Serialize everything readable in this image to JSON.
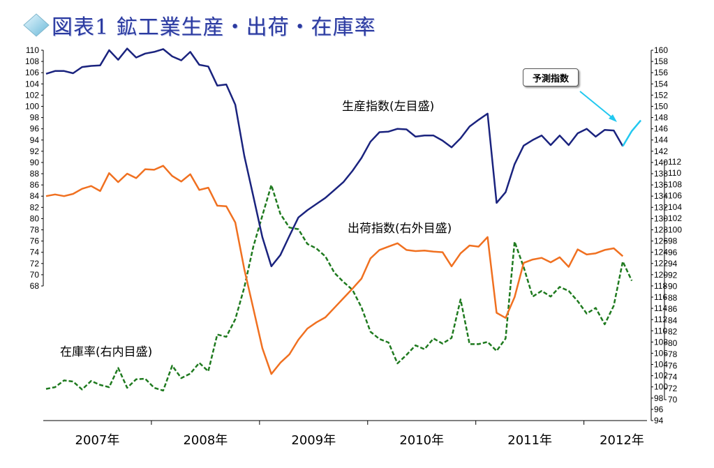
{
  "title": "図表1 鉱工業生産・出荷・在庫率",
  "colors": {
    "production": "#1a237e",
    "shipments": "#f07020",
    "inventory": "#1f7a1f",
    "forecast": "#22c8f0",
    "title": "#2b3aa0"
  },
  "annotations": {
    "production": "生産指数(左目盛)",
    "shipments": "出荷指数(右外目盛)",
    "inventory": "在庫率(右内目盛)",
    "forecast": "予測指数"
  },
  "chart_data": {
    "type": "line",
    "x_categories": [
      "2007年",
      "2008年",
      "2009年",
      "2010年",
      "2011年",
      "2012年"
    ],
    "axes": {
      "left": {
        "min": 68,
        "max": 110,
        "step": 2,
        "ticks": [
          68,
          70,
          72,
          74,
          76,
          78,
          80,
          82,
          84,
          86,
          88,
          90,
          92,
          94,
          96,
          98,
          100,
          102,
          104,
          106,
          108,
          110
        ]
      },
      "right_outer": {
        "min": 94,
        "max": 160,
        "step": 2,
        "ticks": [
          94,
          96,
          98,
          100,
          102,
          104,
          106,
          108,
          110,
          112,
          114,
          116,
          118,
          120,
          122,
          124,
          126,
          128,
          130,
          132,
          134,
          136,
          138,
          140,
          142,
          144,
          146,
          148,
          150,
          152,
          154,
          156,
          158,
          160
        ]
      },
      "right_inner": {
        "min": 70,
        "max": 112,
        "step": 2,
        "ticks": [
          70,
          72,
          74,
          76,
          78,
          80,
          82,
          84,
          86,
          88,
          90,
          92,
          94,
          96,
          98,
          100,
          102,
          104,
          106,
          108,
          110,
          112
        ]
      }
    },
    "series": [
      {
        "name": "生産指数(左目盛)",
        "axis": "left",
        "start": "2007-01",
        "values": [
          105.8,
          106.3,
          106.3,
          105.9,
          107.0,
          107.2,
          107.3,
          110.0,
          108.3,
          110.3,
          108.7,
          109.4,
          109.7,
          110.2,
          108.9,
          108.2,
          109.7,
          107.4,
          107.1,
          103.7,
          103.9,
          100.3,
          91.2,
          84.0,
          76.7,
          71.5,
          73.5,
          76.9,
          80.2,
          81.5,
          82.6,
          83.7,
          85.1,
          86.5,
          88.5,
          90.8,
          93.7,
          95.4,
          95.5,
          96.0,
          95.9,
          94.6,
          94.8,
          94.8,
          93.9,
          92.7,
          94.3,
          96.4,
          97.6,
          98.7,
          82.8,
          84.7,
          89.7,
          93.0,
          94.0,
          94.8,
          93.1,
          94.8,
          93.1,
          95.2,
          96.0,
          94.6,
          95.8,
          95.7,
          92.9
        ]
      },
      {
        "name": "予測指数",
        "axis": "left",
        "start": "2012-05",
        "values": [
          92.9,
          95.6,
          97.5
        ]
      },
      {
        "name": "出荷指数(右外目盛)",
        "axis": "right_outer",
        "start": "2007-01",
        "values": [
          134.0,
          134.3,
          134.0,
          134.4,
          135.3,
          135.8,
          134.9,
          138.1,
          136.5,
          138.0,
          137.2,
          138.8,
          138.7,
          139.4,
          137.6,
          136.6,
          137.9,
          135.1,
          135.5,
          132.3,
          132.2,
          129.3,
          121.0,
          114.0,
          106.9,
          102.3,
          104.3,
          105.8,
          108.4,
          110.4,
          111.5,
          112.4,
          114.1,
          115.8,
          117.5,
          119.3,
          122.9,
          124.4,
          125.0,
          125.6,
          124.4,
          124.2,
          124.3,
          124.1,
          124.0,
          121.5,
          123.8,
          125.2,
          125.0,
          126.7,
          113.2,
          112.3,
          116.0,
          122.1,
          122.7,
          123.0,
          122.2,
          123.1,
          121.4,
          124.5,
          123.6,
          123.8,
          124.4,
          124.7,
          123.3
        ]
      },
      {
        "name": "在庫率(右内目盛)",
        "axis": "right_inner",
        "start": "2007-01",
        "values": [
          71.9,
          72.2,
          73.4,
          73.2,
          71.8,
          73.3,
          72.6,
          72.2,
          75.6,
          72.1,
          73.6,
          73.7,
          72.1,
          71.6,
          76.0,
          73.8,
          74.6,
          76.5,
          75.0,
          81.5,
          81.1,
          84.2,
          89.8,
          97.0,
          102.5,
          107.9,
          102.8,
          100.4,
          100.1,
          97.5,
          96.7,
          95.3,
          92.4,
          90.8,
          89.4,
          86.3,
          82.0,
          80.7,
          80.1,
          76.4,
          77.9,
          79.6,
          78.9,
          80.8,
          79.9,
          80.9,
          87.7,
          79.8,
          79.8,
          80.2,
          78.6,
          80.8,
          97.9,
          93.4,
          88.2,
          89.2,
          88.2,
          89.9,
          89.2,
          87.4,
          85.2,
          86.2,
          83.3,
          86.6,
          94.4,
          91.0
        ]
      }
    ]
  }
}
